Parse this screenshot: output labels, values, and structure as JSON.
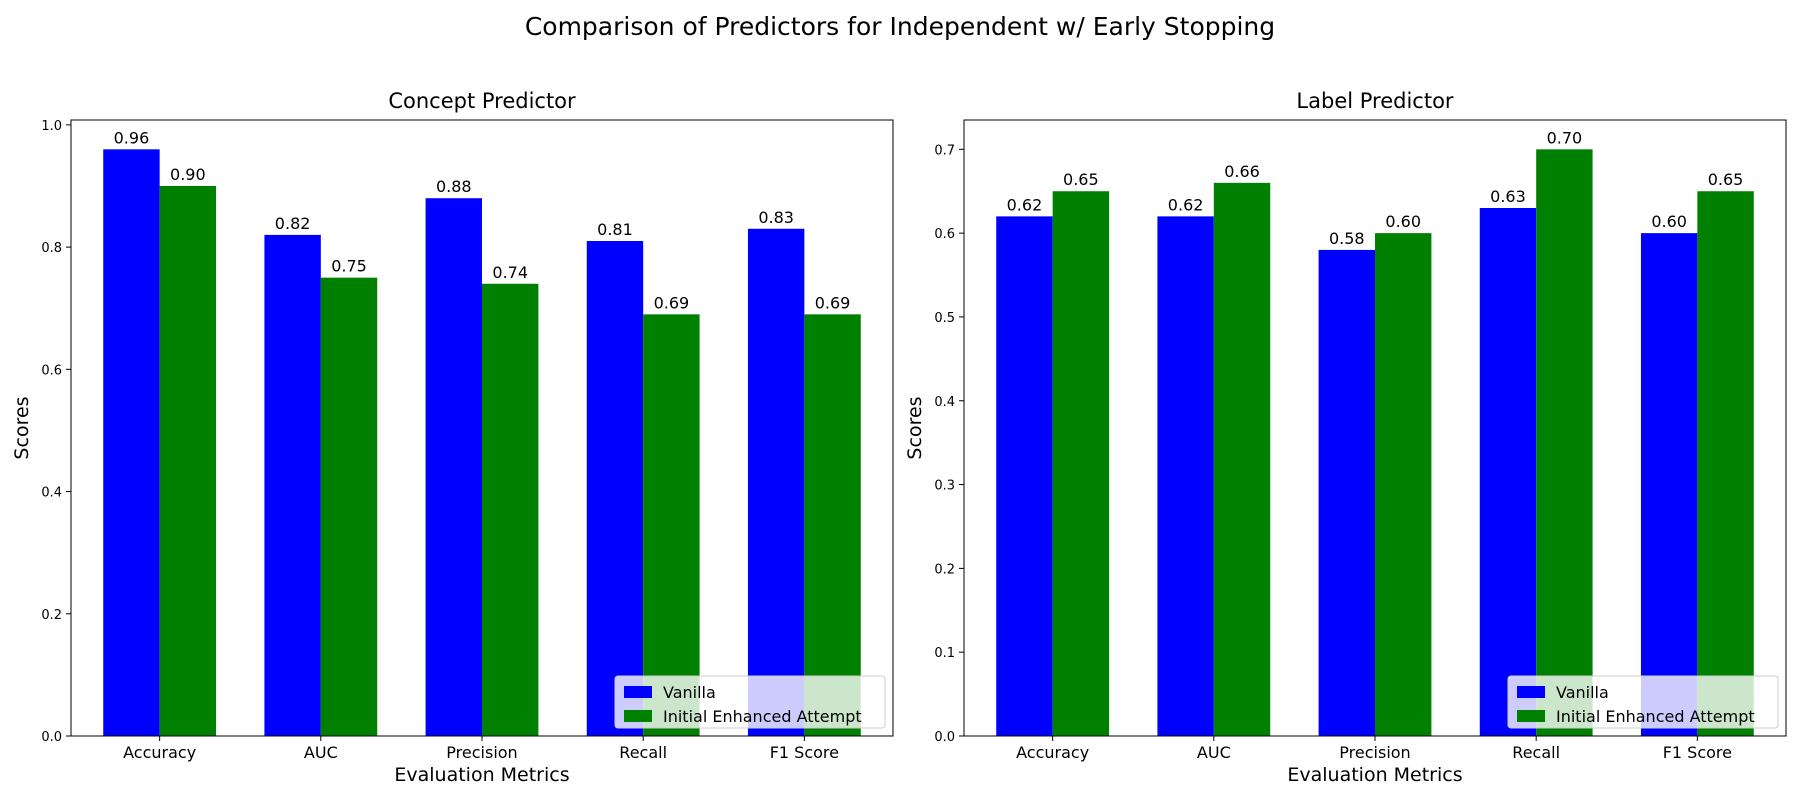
{
  "figure": {
    "suptitle": "Comparison of Predictors for Independent w/ Early Stopping"
  },
  "colors": {
    "Vanilla": "#0000ff",
    "Initial Enhanced Attempt": "#008000"
  },
  "chart_data": [
    {
      "type": "bar",
      "title": "Concept Predictor",
      "xlabel": "Evaluation Metrics",
      "ylabel": "Scores",
      "categories": [
        "Accuracy",
        "AUC",
        "Precision",
        "Recall",
        "F1 Score"
      ],
      "series": [
        {
          "name": "Vanilla",
          "values": [
            0.96,
            0.82,
            0.88,
            0.81,
            0.83
          ]
        },
        {
          "name": "Initial Enhanced Attempt",
          "values": [
            0.9,
            0.75,
            0.74,
            0.69,
            0.69
          ]
        }
      ],
      "ylim": [
        0,
        1.008
      ],
      "yticks": [
        0.0,
        0.2,
        0.4,
        0.6,
        0.8,
        1.0
      ],
      "ytick_labels": [
        "0.0",
        "0.2",
        "0.4",
        "0.6",
        "0.8",
        "1.0"
      ],
      "grid": false,
      "legend": "lower right"
    },
    {
      "type": "bar",
      "title": "Label Predictor",
      "xlabel": "Evaluation Metrics",
      "ylabel": "Scores",
      "categories": [
        "Accuracy",
        "AUC",
        "Precision",
        "Recall",
        "F1 Score"
      ],
      "series": [
        {
          "name": "Vanilla",
          "values": [
            0.62,
            0.62,
            0.58,
            0.63,
            0.6
          ]
        },
        {
          "name": "Initial Enhanced Attempt",
          "values": [
            0.65,
            0.66,
            0.6,
            0.7,
            0.65
          ]
        }
      ],
      "ylim": [
        0,
        0.735
      ],
      "yticks": [
        0.0,
        0.1,
        0.2,
        0.3,
        0.4,
        0.5,
        0.6,
        0.7
      ],
      "ytick_labels": [
        "0.0",
        "0.1",
        "0.2",
        "0.3",
        "0.4",
        "0.5",
        "0.6",
        "0.7"
      ],
      "grid": false,
      "legend": "lower right"
    }
  ]
}
